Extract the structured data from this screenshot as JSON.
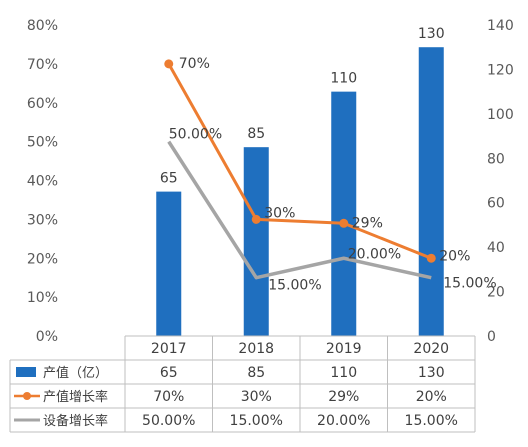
{
  "chart_data": {
    "type": "bar+line",
    "categories": [
      "2017",
      "2018",
      "2019",
      "2020"
    ],
    "series": [
      {
        "name": "产值（亿）",
        "type": "bar",
        "axis": "right",
        "values": [
          65,
          85,
          110,
          130
        ],
        "labels": [
          "65",
          "85",
          "110",
          "130"
        ],
        "color": "#1f6fbf"
      },
      {
        "name": "产值增长率",
        "type": "line",
        "axis": "left",
        "values": [
          70,
          30,
          29,
          20
        ],
        "labels": [
          "70%",
          "30%",
          "29%",
          "20%"
        ],
        "color": "#ed7d31",
        "markers": true
      },
      {
        "name": "设备增长率",
        "type": "line",
        "axis": "left",
        "values": [
          50,
          15,
          20,
          15
        ],
        "labels": [
          "50.00%",
          "15.00%",
          "20.00%",
          "15.00%"
        ],
        "color": "#a5a5a5",
        "markers": false
      }
    ],
    "left_axis": {
      "ticks": [
        "0%",
        "10%",
        "20%",
        "30%",
        "40%",
        "50%",
        "60%",
        "70%",
        "80%"
      ],
      "range": [
        0,
        80
      ]
    },
    "right_axis": {
      "ticks": [
        "0",
        "20",
        "40",
        "60",
        "80",
        "100",
        "120",
        "140"
      ],
      "range": [
        0,
        140
      ]
    },
    "data_table": {
      "rows": [
        {
          "label": "产值（亿）",
          "cells": [
            "65",
            "85",
            "110",
            "130"
          ]
        },
        {
          "label": "产值增长率",
          "cells": [
            "70%",
            "30%",
            "29%",
            "20%"
          ]
        },
        {
          "label": "设备增长率",
          "cells": [
            "50.00%",
            "15.00%",
            "20.00%",
            "15.00%"
          ]
        }
      ]
    },
    "grid": false,
    "legend": "in data table"
  }
}
